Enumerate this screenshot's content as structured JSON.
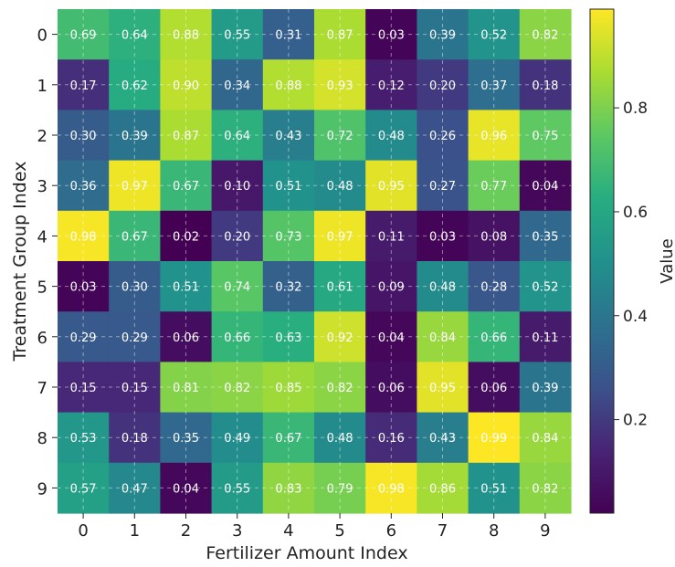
{
  "chart_data": {
    "type": "heatmap",
    "title": "",
    "xlabel": "Fertilizer Amount Index",
    "ylabel": "Treatment Group Index",
    "colorbar_label": "Value",
    "x_categories": [
      "0",
      "1",
      "2",
      "3",
      "4",
      "5",
      "6",
      "7",
      "8",
      "9"
    ],
    "y_categories": [
      "0",
      "1",
      "2",
      "3",
      "4",
      "5",
      "6",
      "7",
      "8",
      "9"
    ],
    "values": [
      [
        0.69,
        0.64,
        0.88,
        0.55,
        0.31,
        0.87,
        0.03,
        0.39,
        0.52,
        0.82
      ],
      [
        0.17,
        0.62,
        0.9,
        0.34,
        0.88,
        0.93,
        0.12,
        0.2,
        0.37,
        0.18
      ],
      [
        0.3,
        0.39,
        0.87,
        0.64,
        0.43,
        0.72,
        0.48,
        0.26,
        0.96,
        0.75
      ],
      [
        0.36,
        0.97,
        0.67,
        0.1,
        0.51,
        0.48,
        0.95,
        0.27,
        0.77,
        0.04
      ],
      [
        0.98,
        0.67,
        0.02,
        0.2,
        0.73,
        0.97,
        0.11,
        0.03,
        0.08,
        0.35
      ],
      [
        0.03,
        0.3,
        0.51,
        0.74,
        0.32,
        0.61,
        0.09,
        0.48,
        0.28,
        0.52
      ],
      [
        0.29,
        0.29,
        0.06,
        0.66,
        0.63,
        0.92,
        0.04,
        0.84,
        0.66,
        0.11
      ],
      [
        0.15,
        0.15,
        0.81,
        0.82,
        0.85,
        0.82,
        0.06,
        0.95,
        0.06,
        0.39
      ],
      [
        0.53,
        0.18,
        0.35,
        0.49,
        0.67,
        0.48,
        0.16,
        0.43,
        0.99,
        0.84
      ],
      [
        0.57,
        0.47,
        0.04,
        0.55,
        0.83,
        0.79,
        0.98,
        0.86,
        0.51,
        0.82
      ]
    ],
    "color_scale": {
      "name": "viridis",
      "vmin": 0.02,
      "vmax": 0.99
    },
    "colorbar_ticks": [
      "0.2",
      "0.4",
      "0.6",
      "0.8"
    ],
    "cell_label_color": "#ffffff",
    "grid": true,
    "grid_style": "dashed"
  }
}
